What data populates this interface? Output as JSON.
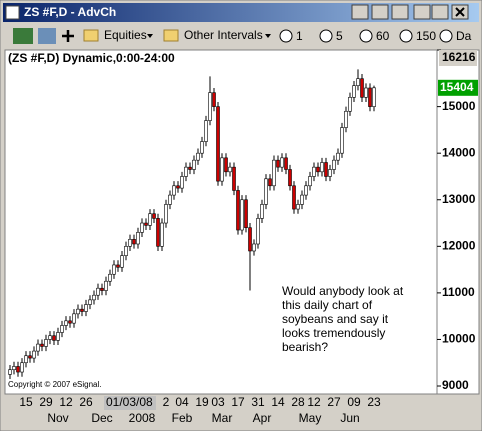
{
  "window": {
    "title": "ZS #F,D - AdvCh"
  },
  "toolbar": {
    "symbol_list": "Equities",
    "interval_list": "Other Intervals",
    "intervals": [
      "1",
      "5",
      "60",
      "150",
      "Da"
    ]
  },
  "chart_data": {
    "type": "candlestick",
    "title": "(ZS #F,D) Dynamic,0:00-24:00",
    "categories": [
      null,
      null,
      null,
      null,
      "15",
      null,
      null,
      null,
      null,
      "29",
      null,
      null,
      null,
      null,
      "12",
      null,
      null,
      null,
      null,
      "26",
      null,
      null,
      null,
      null,
      "01/03/08",
      null,
      null,
      null,
      null,
      null,
      null,
      null,
      null,
      null,
      null,
      null,
      null,
      null,
      null,
      "2",
      null,
      null,
      null,
      "04",
      null,
      null,
      null,
      null,
      "19",
      null,
      null,
      null,
      "03",
      null,
      null,
      null,
      null,
      "17",
      null,
      null,
      null,
      null,
      "31",
      null,
      null,
      null,
      null,
      "14",
      null,
      null,
      null,
      null,
      "28",
      null,
      null,
      null,
      "12",
      null,
      null,
      null,
      null,
      "27",
      null,
      null,
      null,
      null,
      "09",
      null,
      null,
      null,
      null,
      "23"
    ],
    "months": [
      null,
      null,
      null,
      null,
      null,
      null,
      null,
      null,
      null,
      null,
      null,
      null,
      "Nov",
      null,
      null,
      null,
      null,
      null,
      null,
      null,
      null,
      null,
      null,
      "Dec",
      null,
      null,
      null,
      null,
      null,
      null,
      null,
      null,
      null,
      "2008",
      null,
      null,
      null,
      null,
      null,
      null,
      null,
      null,
      null,
      "Feb",
      null,
      null,
      null,
      null,
      null,
      null,
      null,
      null,
      null,
      "Mar",
      null,
      null,
      null,
      null,
      null,
      null,
      null,
      null,
      null,
      "Apr",
      null,
      null,
      null,
      null,
      null,
      null,
      null,
      null,
      null,
      null,
      null,
      "May",
      null,
      null,
      null,
      null,
      null,
      null,
      null,
      null,
      null,
      "Jun",
      null,
      null,
      null,
      null,
      null,
      null
    ],
    "open": [
      9250,
      9350,
      9420,
      9300,
      9500,
      9650,
      9600,
      9750,
      9900,
      9850,
      10000,
      10080,
      9980,
      10150,
      10300,
      10400,
      10350,
      10550,
      10650,
      10600,
      10750,
      10850,
      10950,
      11100,
      11050,
      11250,
      11400,
      11600,
      11550,
      11800,
      12000,
      12150,
      12050,
      12300,
      12500,
      12450,
      12700,
      12600,
      12000,
      12500,
      12900,
      13100,
      13300,
      13250,
      13500,
      13700,
      13650,
      13850,
      14000,
      14250,
      14700,
      15300,
      15000,
      13400,
      13900,
      13600,
      13700,
      13200,
      12350,
      13000,
      12400,
      11900,
      12050,
      12600,
      12900,
      13450,
      13300,
      13850,
      13700,
      13900,
      13650,
      13300,
      12800,
      12900,
      13100,
      13300,
      13500,
      13700,
      13600,
      13800,
      13500,
      13650,
      13850,
      14000,
      14550,
      14900,
      15200,
      15450,
      15600,
      15200,
      15400,
      15000
    ],
    "high": [
      9450,
      9520,
      9520,
      9600,
      9750,
      9750,
      9850,
      10000,
      10000,
      10100,
      10180,
      10180,
      10250,
      10400,
      10500,
      10500,
      10650,
      10750,
      10750,
      10850,
      10950,
      11050,
      11200,
      11200,
      11350,
      11500,
      11700,
      11700,
      11900,
      12100,
      12250,
      12250,
      12400,
      12600,
      12600,
      12800,
      12800,
      12700,
      12600,
      13000,
      13200,
      13400,
      13400,
      13600,
      13800,
      13800,
      13950,
      14100,
      14350,
      14800,
      15650,
      15400,
      15100,
      14000,
      14000,
      13800,
      13800,
      13300,
      13100,
      13100,
      12500,
      12150,
      12700,
      13000,
      13550,
      13550,
      13950,
      13950,
      14000,
      14000,
      13750,
      13400,
      13000,
      13200,
      13400,
      13600,
      13800,
      13800,
      13900,
      13900,
      13750,
      13950,
      14100,
      14650,
      15000,
      15300,
      15550,
      15800,
      15700,
      15500,
      15500,
      15450
    ],
    "low": [
      9150,
      9250,
      9200,
      9200,
      9400,
      9500,
      9500,
      9650,
      9750,
      9750,
      9900,
      9880,
      9880,
      10050,
      10200,
      10250,
      10250,
      10450,
      10500,
      10500,
      10650,
      10750,
      10850,
      10950,
      10950,
      11150,
      11300,
      11450,
      11450,
      11700,
      11900,
      11950,
      11950,
      12200,
      12350,
      12350,
      12500,
      11900,
      11900,
      12400,
      12800,
      13000,
      13150,
      13150,
      13400,
      13550,
      13550,
      13750,
      13900,
      14150,
      14600,
      14900,
      13300,
      13300,
      13500,
      13500,
      13100,
      12250,
      12250,
      12300,
      11050,
      11800,
      11950,
      12500,
      12800,
      13200,
      13200,
      13600,
      13600,
      13550,
      13200,
      12700,
      12700,
      12800,
      13000,
      13200,
      13400,
      13500,
      13500,
      13400,
      13400,
      13550,
      13750,
      13900,
      14450,
      14800,
      15100,
      15350,
      15100,
      15100,
      14900,
      14900
    ],
    "close": [
      9350,
      9420,
      9300,
      9500,
      9650,
      9600,
      9750,
      9900,
      9850,
      10000,
      10080,
      9980,
      10150,
      10300,
      10400,
      10350,
      10550,
      10650,
      10600,
      10750,
      10850,
      10950,
      11100,
      11050,
      11250,
      11400,
      11600,
      11550,
      11800,
      12000,
      12150,
      12050,
      12300,
      12500,
      12450,
      12700,
      12600,
      12000,
      12500,
      12900,
      13100,
      13300,
      13250,
      13500,
      13700,
      13650,
      13850,
      14000,
      14250,
      14700,
      15300,
      15000,
      13400,
      13900,
      13600,
      13700,
      13200,
      12350,
      13000,
      12400,
      11900,
      12050,
      12600,
      12900,
      13450,
      13300,
      13850,
      13700,
      13900,
      13650,
      13300,
      12800,
      12900,
      13100,
      13300,
      13500,
      13700,
      13600,
      13800,
      13500,
      13650,
      13850,
      14000,
      14550,
      14900,
      15200,
      15450,
      15600,
      15200,
      15400,
      15000,
      15404
    ],
    "up_color": "#ffffff",
    "down_color": "#cc0000",
    "last_price_color": "#00a000",
    "ylim": [
      8850,
      16216
    ],
    "yticks": [
      9000,
      10000,
      11000,
      12000,
      13000,
      14000,
      15000,
      16216
    ],
    "last_price": 15404,
    "annotation": [
      "Would anybody look at",
      "this daily chart of",
      "soybeans and say it",
      "looks tremendously",
      "bearish?"
    ],
    "copyright": "Copyright © 2007 eSignal."
  }
}
